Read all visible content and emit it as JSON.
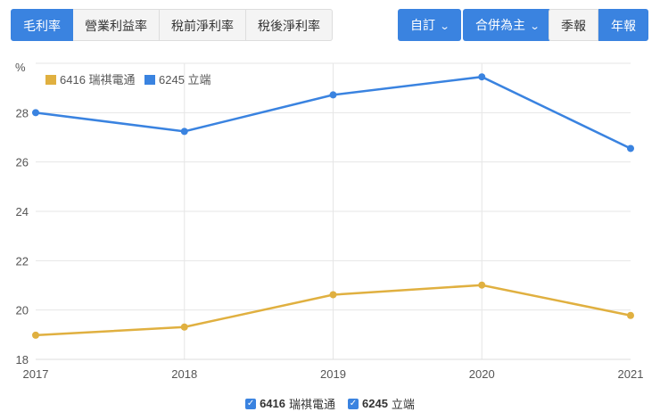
{
  "tabs": [
    {
      "label": "毛利率",
      "active": true
    },
    {
      "label": "營業利益率",
      "active": false
    },
    {
      "label": "稅前淨利率",
      "active": false
    },
    {
      "label": "稅後淨利率",
      "active": false
    }
  ],
  "controls": {
    "range_label": "自訂",
    "basis_label": "合併為主",
    "period": [
      {
        "label": "季報",
        "active": false
      },
      {
        "label": "年報",
        "active": true
      }
    ]
  },
  "colors": {
    "accent": "#3a83e0",
    "series1": "#e0b040",
    "series2": "#3a83e0"
  },
  "legend_bottom": [
    {
      "code": "6416",
      "name": "瑞祺電通",
      "checked": true
    },
    {
      "code": "6245",
      "name": "立端",
      "checked": true
    }
  ],
  "chart_data": {
    "type": "line",
    "title": "",
    "ylabel": "%",
    "xlabel": "",
    "x": [
      "2017",
      "2018",
      "2019",
      "2020",
      "2021"
    ],
    "yticks": [
      18,
      20,
      22,
      24,
      26,
      28
    ],
    "ylim": [
      18,
      30
    ],
    "grid": true,
    "legend_position": "top-left",
    "series": [
      {
        "name": "6416 瑞祺電通",
        "color": "#e0b040",
        "values": [
          18.98,
          19.31,
          20.62,
          21.01,
          19.78
        ]
      },
      {
        "name": "6245 立端",
        "color": "#3a83e0",
        "values": [
          28.0,
          27.24,
          28.72,
          29.45,
          26.55
        ]
      }
    ]
  }
}
